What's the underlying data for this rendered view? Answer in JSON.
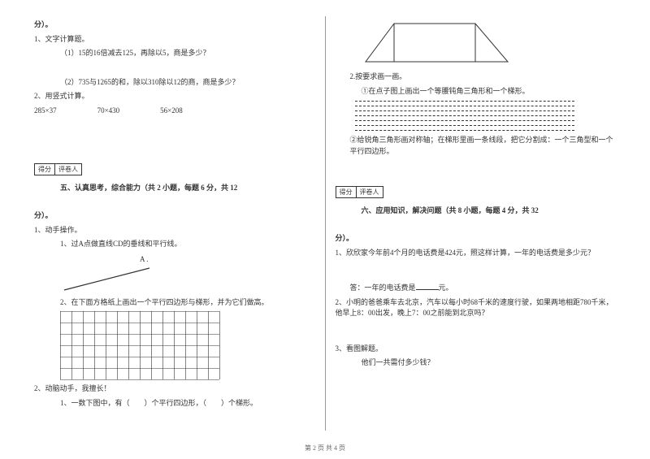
{
  "left": {
    "fen_suffix": "分）。",
    "q1_title": "1、文字计算题。",
    "q1_a": "（1）15的16倍减去125，再除以5，商是多少？",
    "q1_b": "（2）735与1265的和，除以310除以12的商，商是多少？",
    "q2_title": "2、用竖式计算。",
    "calc_a": "285×37",
    "calc_b": "70×430",
    "calc_c": "56×208",
    "score_a": "得分",
    "score_b": "评卷人",
    "sec5_title": "五、认真思考，综合能力（共 2 小题，每题 6 分，共 12",
    "sec5_suffix": "分）。",
    "q5_1": "1、动手操作。",
    "q5_1_a": "1、过A点做直线CD的垂线和平行线。",
    "label_A": "A .",
    "q5_1_b": "2、在下面方格纸上画出一个平行四边形与梯形，并为它们做高。",
    "q5_2": "2、动脑动手，我擅长！",
    "q5_2_a": "1、一数下图中，有（　　）个平行四边形，（　　）个梯形。",
    "grid": {
      "cols": 14,
      "rows": 6,
      "cell": 14,
      "stroke": "#333333"
    }
  },
  "right": {
    "q2_title": "2.按要求画一画。",
    "q2_a": "①在点子图上画出一个等腰钝角三角形和一个梯形。",
    "q2_b": "②给锐角三角形画对称轴；在梯形里画一条线段，把它分割成：一个三角型和一个平行四边形。",
    "score_a": "得分",
    "score_b": "评卷人",
    "sec6_title": "六、应用知识，解决问题（共 8 小题，每题 4 分，共 32",
    "sec6_suffix": "分）。",
    "q6_1": "1、欣欣家今年前4个月的电话费是424元，照这样计算，一年的电话费是多少元？",
    "q6_1_ans_pre": "答：一年的电话费是",
    "q6_1_ans_post": "元。",
    "q6_2": "2、小明的爸爸乘车去北京，汽车以每小时68千米的速度行驶，如果两地相距780千米，他早上8：00出发，晚上7：00之前能到北京吗？",
    "q6_3": "3、看图解题。",
    "q6_3_a": "他们一共需付多少钱？",
    "trapezoid": {
      "stroke": "#333333"
    },
    "dots": {
      "cols": 34,
      "rows": 7,
      "gap": 8,
      "fill": "#333333"
    }
  },
  "footer": "第 2 页 共 4 页"
}
